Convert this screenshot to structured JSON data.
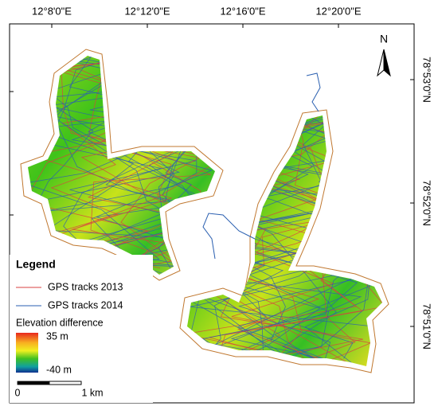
{
  "map": {
    "north_label": "N",
    "top_labels": [
      "12°8'0\"E",
      "12°12'0\"E",
      "12°16'0\"E",
      "12°20'0\"E"
    ],
    "right_labels": [
      "78°53'0\"N",
      "78°52'0\"N",
      "78°51'0\"N"
    ],
    "legend": {
      "title": "Legend",
      "items": [
        "GPS tracks 2013",
        "GPS tracks 2014"
      ],
      "ramp_title": "Elevation difference",
      "ramp_max": "35 m",
      "ramp_min": "-40 m",
      "scale_labels": [
        "0",
        "1 km"
      ]
    }
  }
}
